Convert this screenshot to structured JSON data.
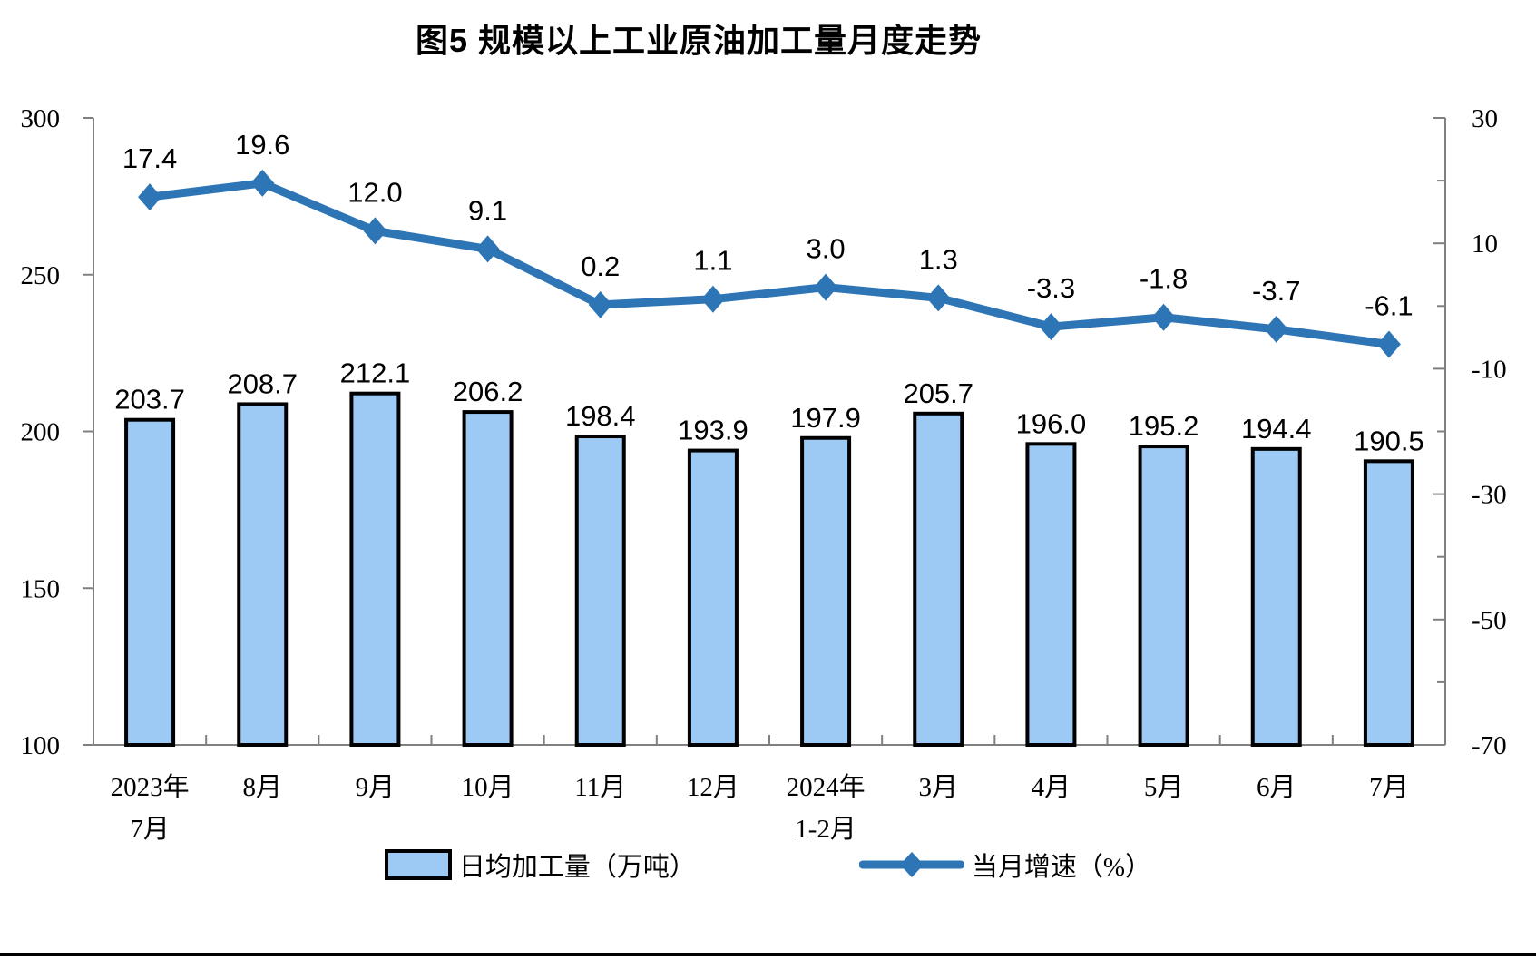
{
  "chart_data": {
    "type": "bar",
    "title": "图5  规模以上工业原油加工量月度走势",
    "categories": [
      "2023年 7月",
      "8月",
      "9月",
      "10月",
      "11月",
      "12月",
      "2024年 1-2月",
      "3月",
      "4月",
      "5月",
      "6月",
      "7月"
    ],
    "category_lines": [
      [
        "2023年",
        "7月"
      ],
      [
        "8月"
      ],
      [
        "9月"
      ],
      [
        "10月"
      ],
      [
        "11月"
      ],
      [
        "12月"
      ],
      [
        "2024年",
        "1-2月"
      ],
      [
        "3月"
      ],
      [
        "4月"
      ],
      [
        "5月"
      ],
      [
        "6月"
      ],
      [
        "7月"
      ]
    ],
    "series": [
      {
        "name": "日均加工量（万吨）",
        "type": "bar",
        "axis": "left",
        "values": [
          203.7,
          208.7,
          212.1,
          206.2,
          198.4,
          193.9,
          197.9,
          205.7,
          196.0,
          195.2,
          194.4,
          190.5
        ],
        "color": "#9DCAF5",
        "border_color": "#000000"
      },
      {
        "name": "当月增速（%）",
        "type": "line",
        "axis": "right",
        "values": [
          17.4,
          19.6,
          12.0,
          9.1,
          0.2,
          1.1,
          3.0,
          1.3,
          -3.3,
          -1.8,
          -3.7,
          -6.1
        ],
        "color": "#2E75B6",
        "marker": "diamond"
      }
    ],
    "left_axis": {
      "min": 100,
      "max": 300,
      "ticks": [
        300,
        250,
        200,
        150,
        100
      ]
    },
    "right_axis": {
      "min": -70,
      "max": 30,
      "ticks": [
        30,
        10,
        -10,
        -30,
        -50,
        -70
      ],
      "minor_ticks": [
        20,
        0,
        -20,
        -40,
        -60
      ]
    },
    "axis_color": "#808080",
    "label_color": "#000000",
    "grid": "off",
    "legend_position": "bottom"
  }
}
